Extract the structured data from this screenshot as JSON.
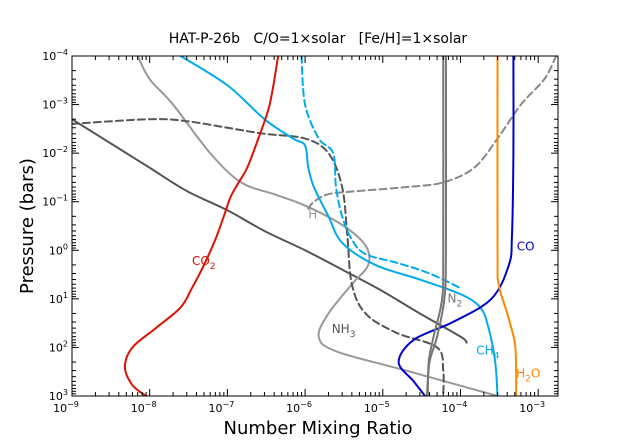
{
  "chart_data": {
    "type": "line",
    "title": "HAT-P-26b   C/O=1×solar   [Fe/H]=1×solar",
    "xlabel": "Number Mixing Ratio",
    "ylabel": "Pressure (bars)",
    "x_scale": "log",
    "y_scale": "log",
    "y_inverted": true,
    "xlim": [
      1e-09,
      0.0018
    ],
    "ylim": [
      0.0001,
      1000
    ],
    "grid": false,
    "legend": "none",
    "x_ticks": [
      {
        "value": 1e-09,
        "mant": "10",
        "exp": "−9"
      },
      {
        "value": 1e-08,
        "mant": "10",
        "exp": "−8"
      },
      {
        "value": 1e-07,
        "mant": "10",
        "exp": "−7"
      },
      {
        "value": 1e-06,
        "mant": "10",
        "exp": "−6"
      },
      {
        "value": 1e-05,
        "mant": "10",
        "exp": "−5"
      },
      {
        "value": 0.0001,
        "mant": "10",
        "exp": "−4"
      },
      {
        "value": 0.001,
        "mant": "10",
        "exp": "−3"
      }
    ],
    "y_ticks": [
      {
        "value": 0.0001,
        "mant": "10",
        "exp": "−4"
      },
      {
        "value": 0.001,
        "mant": "10",
        "exp": "−3"
      },
      {
        "value": 0.01,
        "mant": "10",
        "exp": "−2"
      },
      {
        "value": 0.1,
        "mant": "10",
        "exp": "−1"
      },
      {
        "value": 1,
        "mant": "10",
        "exp": "0"
      },
      {
        "value": 10,
        "mant": "10",
        "exp": "1"
      },
      {
        "value": 100,
        "mant": "10",
        "exp": "2"
      },
      {
        "value": 1000,
        "mant": "10",
        "exp": "3"
      }
    ],
    "series": [
      {
        "color": "#555555",
        "dash": false,
        "points": [
          [
            1e-09,
            0.002
          ],
          [
            3e-09,
            0.006
          ],
          [
            1e-08,
            0.02
          ],
          [
            3e-08,
            0.06
          ],
          [
            1e-07,
            0.15
          ],
          [
            3e-07,
            0.4
          ],
          [
            1e-06,
            1
          ],
          [
            3e-06,
            2.5
          ],
          [
            1e-05,
            7
          ],
          [
            3e-05,
            20
          ],
          [
            0.0001,
            60
          ],
          [
            0.00012,
            80
          ]
        ]
      },
      {
        "color": "#999999",
        "dash": false,
        "points": [
          [
            7e-09,
            0.0001
          ],
          [
            1e-08,
            0.0003
          ],
          [
            2e-08,
            0.001
          ],
          [
            6e-08,
            0.01
          ],
          [
            1.5e-07,
            0.04
          ],
          [
            4e-07,
            0.07
          ],
          [
            1e-06,
            0.12
          ],
          [
            3e-06,
            0.3
          ],
          [
            6e-06,
            0.8
          ],
          [
            6.5e-06,
            2
          ],
          [
            4e-06,
            5
          ],
          [
            2e-06,
            20
          ],
          [
            1.5e-06,
            60
          ],
          [
            2.5e-06,
            120
          ],
          [
            2e-05,
            300
          ],
          [
            0.0003,
            1000
          ]
        ]
      },
      {
        "color": "#555555",
        "dash": true,
        "points": [
          [
            1e-09,
            0.0025
          ],
          [
            1e-08,
            0.002
          ],
          [
            3e-08,
            0.0022
          ],
          [
            1e-07,
            0.003
          ],
          [
            3e-07,
            0.004
          ],
          [
            1e-06,
            0.005
          ],
          [
            2e-06,
            0.01
          ],
          [
            3e-06,
            0.05
          ],
          [
            3.5e-06,
            0.5
          ],
          [
            4e-06,
            5
          ],
          [
            6e-06,
            20
          ],
          [
            1.5e-05,
            50
          ],
          [
            5e-05,
            100
          ],
          [
            6e-05,
            300
          ],
          [
            6e-05,
            1000
          ]
        ]
      },
      {
        "color": "#888888",
        "dash": true,
        "points": [
          [
            1.1e-06,
            0.14
          ],
          [
            1.3e-06,
            0.1
          ],
          [
            2e-06,
            0.07
          ],
          [
            5e-06,
            0.06
          ],
          [
            2e-05,
            0.05
          ],
          [
            6e-05,
            0.04
          ],
          [
            0.00015,
            0.02
          ],
          [
            0.0003,
            0.005
          ],
          [
            0.0006,
            0.001
          ],
          [
            0.0012,
            0.0003
          ],
          [
            0.0017,
            0.0001
          ]
        ]
      },
      {
        "color": "#00aaee",
        "dash": false,
        "points": [
          [
            2.5e-08,
            0.0001
          ],
          [
            1e-07,
            0.0004
          ],
          [
            3e-07,
            0.002
          ],
          [
            7e-07,
            0.005
          ],
          [
            1e-06,
            0.007
          ],
          [
            1.1e-06,
            0.02
          ],
          [
            1.3e-06,
            0.05
          ],
          [
            2e-06,
            0.2
          ],
          [
            3e-06,
            0.7
          ],
          [
            8e-06,
            2
          ],
          [
            3e-05,
            4
          ],
          [
            0.0001,
            8
          ],
          [
            0.00018,
            15
          ],
          [
            0.00023,
            40
          ],
          [
            0.00028,
            200
          ],
          [
            0.0003,
            1000
          ]
        ]
      },
      {
        "color": "#00aaee",
        "dash": true,
        "points": [
          [
            9e-07,
            0.0001
          ],
          [
            1e-06,
            0.001
          ],
          [
            1.5e-06,
            0.005
          ],
          [
            2.3e-06,
            0.01
          ],
          [
            2.5e-06,
            0.05
          ],
          [
            3e-06,
            0.2
          ],
          [
            4e-06,
            0.6
          ],
          [
            6e-06,
            1.2
          ],
          [
            1.5e-05,
            1.8
          ],
          [
            4e-05,
            3
          ],
          [
            0.0001,
            6
          ]
        ]
      },
      {
        "color": "#dd1100",
        "dash": false,
        "points": [
          [
            4.5e-07,
            0.0001
          ],
          [
            3.5e-07,
            0.001
          ],
          [
            2.5e-07,
            0.005
          ],
          [
            1.8e-07,
            0.02
          ],
          [
            1.4e-07,
            0.04
          ],
          [
            1.1e-07,
            0.08
          ],
          [
            9e-08,
            0.2
          ],
          [
            7e-08,
            0.6
          ],
          [
            5e-08,
            2
          ],
          [
            3.5e-08,
            6
          ],
          [
            2.5e-08,
            15
          ],
          [
            1.2e-08,
            40
          ],
          [
            6e-09,
            100
          ],
          [
            4.8e-09,
            250
          ],
          [
            6e-09,
            600
          ],
          [
            9e-09,
            1000
          ]
        ]
      },
      {
        "color": "#0000cc",
        "dash": false,
        "points": [
          [
            0.00048,
            0.0001
          ],
          [
            0.00048,
            0.01
          ],
          [
            0.00046,
            0.5
          ],
          [
            0.00042,
            2
          ],
          [
            0.00025,
            10
          ],
          [
            8e-05,
            30
          ],
          [
            2.5e-05,
            70
          ],
          [
            1.6e-05,
            200
          ],
          [
            2.5e-05,
            500
          ],
          [
            3.5e-05,
            1000
          ]
        ]
      },
      {
        "color": "#ff8800",
        "dash": false,
        "points": [
          [
            0.0003,
            0.0001
          ],
          [
            0.0003,
            1
          ],
          [
            0.00031,
            5
          ],
          [
            0.0004,
            20
          ],
          [
            0.0005,
            80
          ],
          [
            0.00052,
            300
          ],
          [
            0.00052,
            1000
          ]
        ]
      },
      {
        "color": "#777777",
        "dash": false,
        "points": [
          [
            6.5e-05,
            0.0001
          ],
          [
            6.5e-05,
            1
          ],
          [
            6.2e-05,
            10
          ],
          [
            5e-05,
            60
          ],
          [
            4e-05,
            200
          ],
          [
            3.7e-05,
            1000
          ]
        ]
      },
      {
        "color": "#777777",
        "dash": false,
        "points": [
          [
            6e-05,
            0.0001
          ],
          [
            6e-05,
            1
          ],
          [
            5.8e-05,
            10
          ],
          [
            4.5e-05,
            60
          ],
          [
            3.9e-05,
            200
          ],
          [
            3.8e-05,
            1000
          ]
        ]
      }
    ],
    "annotations": [
      {
        "base": "H",
        "sub": "",
        "x": 1.1e-06,
        "y": 0.22,
        "color": "#999999"
      },
      {
        "base": "CO",
        "sub": "2",
        "x": 3.5e-08,
        "y": 2.0,
        "color": "#dd1100"
      },
      {
        "base": "CO",
        "sub": "",
        "x": 0.00053,
        "y": 1.0,
        "color": "#0000cc"
      },
      {
        "base": "N",
        "sub": "2",
        "x": 6.8e-05,
        "y": 12,
        "color": "#777777"
      },
      {
        "base": "NH",
        "sub": "3",
        "x": 2.2e-06,
        "y": 50,
        "color": "#555555"
      },
      {
        "base": "CH",
        "sub": "4",
        "x": 0.00016,
        "y": 140,
        "color": "#00aaee"
      },
      {
        "base": "H",
        "sub": "2",
        "x": 0.00052,
        "y": 420,
        "color": "#ff8800",
        "tail": "O"
      }
    ]
  }
}
